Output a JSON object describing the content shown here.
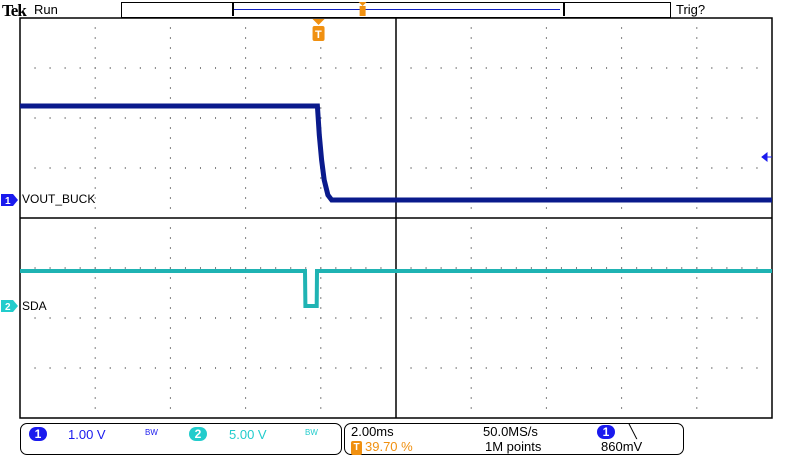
{
  "header": {
    "brand": "Tek",
    "state": "Run",
    "trigger_status": "Trig?"
  },
  "channels": [
    {
      "id": "1",
      "label": "VOUT_BUCK",
      "scale": "1.00 V",
      "bw": "BW",
      "color": "#1a1aee",
      "trace_color": "#0a1a8c"
    },
    {
      "id": "2",
      "label": "SDA",
      "scale": "5.00 V",
      "bw": "BW",
      "color": "#22cccc",
      "trace_color": "#1fb3b3"
    }
  ],
  "timebase": {
    "scale": "2.00ms",
    "sample_rate": "50.0MS/s",
    "position": "39.70 %",
    "record": "1M points"
  },
  "trigger": {
    "source": "1",
    "slope": "falling",
    "level": "860mV",
    "marker": "T",
    "color": "#f09010"
  },
  "chart_data": {
    "type": "line",
    "xlabel": "",
    "ylabel": "",
    "grid": true,
    "x_unit": "ms",
    "xlim": [
      -7.94,
      12.06
    ],
    "divisions": {
      "x": 10,
      "y": 8
    },
    "series": [
      {
        "name": "VOUT_BUCK",
        "channel": "1",
        "volts_per_div": 1.0,
        "x": [
          -7.94,
          -0.03,
          0.02,
          0.08,
          0.15,
          0.25,
          0.35,
          12.06
        ],
        "y": [
          1.88,
          1.88,
          1.3,
          0.8,
          0.4,
          0.1,
          0.0,
          0.0
        ]
      },
      {
        "name": "SDA",
        "channel": "2",
        "volts_per_div": 5.0,
        "x": [
          -7.94,
          -0.36,
          -0.35,
          -0.05,
          -0.04,
          12.06
        ],
        "y": [
          3.5,
          3.5,
          0.0,
          0.0,
          3.5,
          3.5
        ]
      }
    ]
  }
}
